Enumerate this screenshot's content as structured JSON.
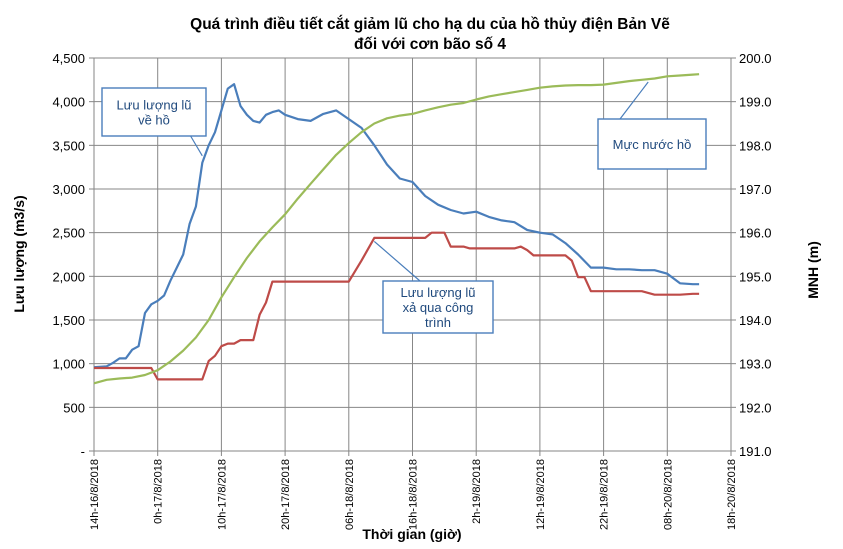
{
  "chart_data": {
    "type": "line",
    "title": "Quá trình điều tiết cắt giảm lũ cho hạ du của hồ  thủy điện Bản Vẽ",
    "subtitle": "đối với cơn bão số 4",
    "xlabel": "Thời gian (giờ)",
    "ylabel_left": "Lưu lượng (m3/s)",
    "ylabel_right": "MNH (m)",
    "x_ticks": [
      "14h-16/8/2018",
      "0h-17/8/2018",
      "10h-17/8/2018",
      "20h-17/8/2018",
      "06h-18/8/2018",
      "16h-18/8/2018",
      "2h-19/8/2018",
      "12h-19/8/2018",
      "22h-19/8/2018",
      "08h-20/8/2018",
      "18h-20/8/2018"
    ],
    "x_range_hours": [
      0,
      100
    ],
    "y_left_ticks": [
      "-",
      "500",
      "1,000",
      "1,500",
      "2,000",
      "2,500",
      "3,000",
      "3,500",
      "4,000",
      "4,500"
    ],
    "y_left_range": [
      0,
      4500
    ],
    "y_right_ticks": [
      "191.0",
      "192.0",
      "193.0",
      "194.0",
      "195.0",
      "196.0",
      "197.0",
      "198.0",
      "199.0",
      "200.0"
    ],
    "y_right_range": [
      191.0,
      200.0
    ],
    "grid": true,
    "series": [
      {
        "name": "Lưu lượng lũ về hồ",
        "axis": "left",
        "color": "#4A7EBB",
        "x": [
          0,
          2,
          3,
          4,
          5,
          6,
          7,
          8,
          9,
          10,
          11,
          12,
          13,
          14,
          15,
          16,
          17,
          18,
          19,
          20,
          21,
          22,
          23,
          24,
          25,
          26,
          27,
          28,
          29,
          30,
          32,
          34,
          36,
          38,
          40,
          42,
          44,
          46,
          48,
          50,
          52,
          54,
          56,
          58,
          60,
          62,
          64,
          66,
          68,
          70,
          72,
          74,
          76,
          78,
          80,
          82,
          84,
          86,
          88,
          90,
          92,
          94,
          95
        ],
        "y": [
          960,
          970,
          1010,
          1060,
          1060,
          1160,
          1200,
          1580,
          1680,
          1720,
          1780,
          1950,
          2100,
          2250,
          2600,
          2800,
          3300,
          3500,
          3650,
          3900,
          4150,
          4200,
          3950,
          3850,
          3780,
          3760,
          3850,
          3880,
          3900,
          3850,
          3800,
          3780,
          3860,
          3900,
          3800,
          3700,
          3500,
          3280,
          3120,
          3080,
          2920,
          2820,
          2760,
          2720,
          2740,
          2680,
          2640,
          2620,
          2530,
          2500,
          2480,
          2380,
          2250,
          2100,
          2100,
          2080,
          2080,
          2070,
          2070,
          2030,
          1920,
          1910,
          1910
        ]
      },
      {
        "name": "Lưu lượng lũ xả qua công trình",
        "axis": "left",
        "color": "#BE4B48",
        "x": [
          0,
          9,
          10,
          17,
          18,
          19,
          20,
          21,
          22,
          23,
          24,
          25,
          26,
          27,
          28,
          29,
          30,
          35,
          40,
          42,
          44,
          45,
          46,
          48,
          50,
          52,
          53,
          54,
          55,
          56,
          57,
          58,
          59,
          60,
          62,
          66,
          67,
          68,
          69,
          70,
          71,
          72,
          73,
          74,
          75,
          76,
          77,
          78,
          80,
          84,
          86,
          88,
          92,
          94,
          95
        ],
        "y": [
          950,
          950,
          820,
          820,
          1030,
          1090,
          1200,
          1230,
          1230,
          1270,
          1270,
          1270,
          1560,
          1700,
          1940,
          1940,
          1940,
          1940,
          1940,
          2180,
          2440,
          2440,
          2440,
          2440,
          2440,
          2440,
          2500,
          2500,
          2500,
          2340,
          2340,
          2340,
          2320,
          2320,
          2320,
          2320,
          2340,
          2300,
          2240,
          2240,
          2240,
          2240,
          2240,
          2240,
          2180,
          1990,
          1990,
          1830,
          1830,
          1830,
          1830,
          1790,
          1790,
          1800,
          1800
        ]
      },
      {
        "name": "Mực nước hồ",
        "axis": "right",
        "color": "#9BBB59",
        "x": [
          0,
          2,
          4,
          6,
          8,
          10,
          12,
          14,
          16,
          18,
          20,
          22,
          24,
          26,
          28,
          30,
          32,
          34,
          36,
          38,
          40,
          42,
          44,
          46,
          48,
          50,
          52,
          54,
          56,
          58,
          60,
          62,
          64,
          66,
          68,
          70,
          72,
          74,
          76,
          78,
          80,
          82,
          84,
          86,
          88,
          90,
          92,
          94,
          95
        ],
        "y": [
          192.55,
          192.63,
          192.66,
          192.68,
          192.74,
          192.85,
          193.05,
          193.3,
          193.6,
          194.0,
          194.52,
          194.98,
          195.42,
          195.8,
          196.12,
          196.42,
          196.78,
          197.12,
          197.45,
          197.78,
          198.05,
          198.3,
          198.5,
          198.62,
          198.68,
          198.72,
          198.8,
          198.87,
          198.93,
          198.97,
          199.05,
          199.12,
          199.17,
          199.22,
          199.27,
          199.32,
          199.35,
          199.37,
          199.38,
          199.38,
          199.39,
          199.43,
          199.47,
          199.5,
          199.53,
          199.58,
          199.6,
          199.62,
          199.63
        ]
      }
    ],
    "callouts": [
      {
        "text": [
          "Lưu lượng lũ",
          "về hồ"
        ],
        "target_series": "Lưu lượng lũ về hồ"
      },
      {
        "text": [
          "Lưu lượng lũ",
          "xả qua công",
          "trình"
        ],
        "target_series": "Lưu lượng lũ xả qua công trình"
      },
      {
        "text": [
          "Mực nước hồ"
        ],
        "target_series": "Mực nước hồ"
      }
    ],
    "colors": {
      "grid": "#878787",
      "axis": "#868686",
      "callout_border": "#4A7EBB"
    }
  }
}
